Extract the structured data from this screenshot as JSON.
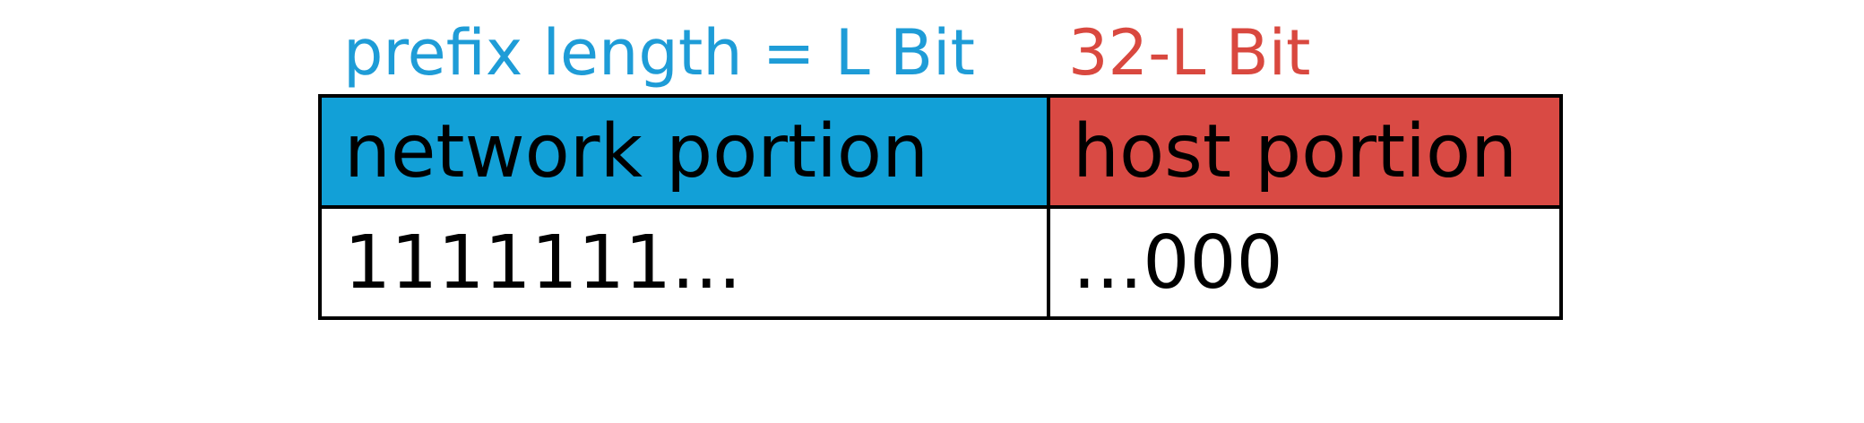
{
  "labels": {
    "network": "prefix length = L Bit",
    "host": "32-L Bit"
  },
  "table": {
    "header": {
      "network": "network portion",
      "host": "host portion"
    },
    "bits": {
      "network": "1111111...",
      "host": "...000"
    }
  },
  "colors": {
    "network": "#12a0d7",
    "host": "#d94a44",
    "network_label": "#1e9cd7",
    "host_label": "#d9483f",
    "border": "#000000"
  }
}
